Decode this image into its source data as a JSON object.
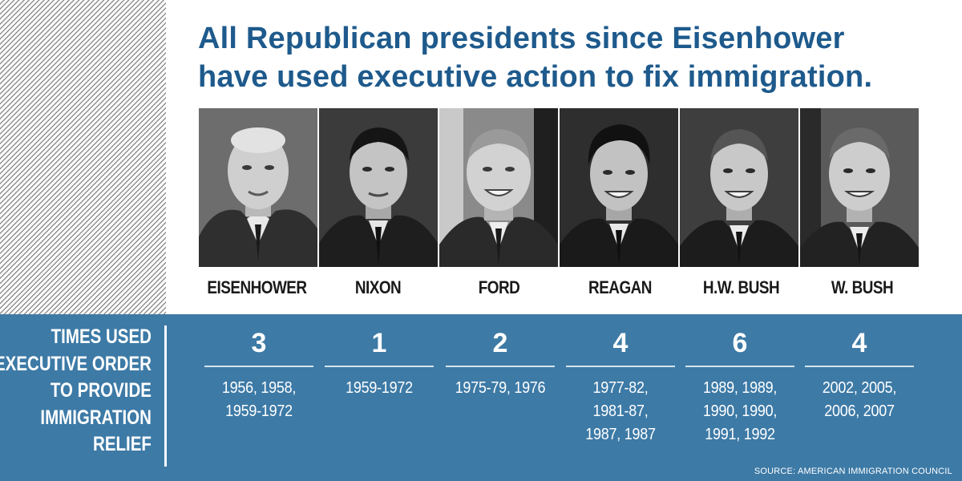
{
  "title": {
    "line1": "All Republican presidents since Eisenhower",
    "line2": "have used executive action to fix immigration."
  },
  "row_label": [
    "TIMES USED",
    "EXECUTIVE ORDER",
    "TO PROVIDE",
    "IMMIGRATION",
    "RELIEF"
  ],
  "presidents": [
    {
      "name": "EISENHOWER",
      "count": "3",
      "years": [
        "1956, 1958,",
        "1959-1972"
      ]
    },
    {
      "name": "NIXON",
      "count": "1",
      "years": [
        "1959-1972"
      ]
    },
    {
      "name": "FORD",
      "count": "2",
      "years": [
        "1975-79, 1976"
      ]
    },
    {
      "name": "REAGAN",
      "count": "4",
      "years": [
        "1977-82,",
        "1981-87,",
        "1987, 1987"
      ]
    },
    {
      "name": "H.W. BUSH",
      "count": "6",
      "years": [
        "1989, 1989,",
        "1990, 1990,",
        "1991, 1992"
      ]
    },
    {
      "name": "W. BUSH",
      "count": "4",
      "years": [
        "2002, 2005,",
        "2006, 2007"
      ]
    }
  ],
  "source": "SOURCE: AMERICAN IMMIGRATION COUNCIL",
  "colors": {
    "title": "#1e5a8c",
    "panel": "#3d7aa6"
  }
}
